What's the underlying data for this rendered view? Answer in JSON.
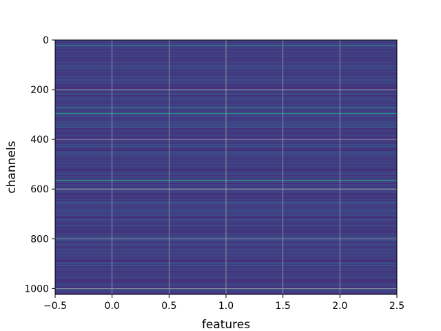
{
  "chart_data": {
    "type": "heatmap",
    "title": "",
    "xlabel": "features",
    "ylabel": "channels",
    "xlim": [
      -0.5,
      2.5
    ],
    "ylim": [
      1024,
      0
    ],
    "y_inverted": true,
    "rows": 1024,
    "columns": 3,
    "xticks": [
      -0.5,
      0.0,
      0.5,
      1.0,
      1.5,
      2.0,
      2.5
    ],
    "xtick_labels": [
      "−0.5",
      "0.0",
      "0.5",
      "1.0",
      "1.5",
      "2.0",
      "2.5"
    ],
    "yticks": [
      0,
      200,
      400,
      600,
      800,
      1000
    ],
    "ytick_labels": [
      "0",
      "200",
      "400",
      "600",
      "800",
      "1000"
    ],
    "grid": true,
    "colormap": "viridis",
    "colormap_stops": [
      "#440154",
      "#482878",
      "#3e4989",
      "#31688e",
      "#26828e",
      "#1f9e89",
      "#35b779",
      "#6ece58",
      "#b5de2b",
      "#fde725"
    ],
    "highlighted_rows": [
      {
        "channel": 22,
        "level": 0.6
      },
      {
        "channel": 270,
        "level": 0.55
      },
      {
        "channel": 295,
        "level": 0.62
      },
      {
        "channel": 350,
        "level": 0.45
      },
      {
        "channel": 430,
        "level": 0.4
      },
      {
        "channel": 565,
        "level": 0.68
      },
      {
        "channel": 655,
        "level": 0.4
      },
      {
        "channel": 745,
        "level": 0.38
      },
      {
        "channel": 905,
        "level": 0.35
      },
      {
        "channel": 1005,
        "level": 0.42
      }
    ],
    "background_level": 0.18
  }
}
